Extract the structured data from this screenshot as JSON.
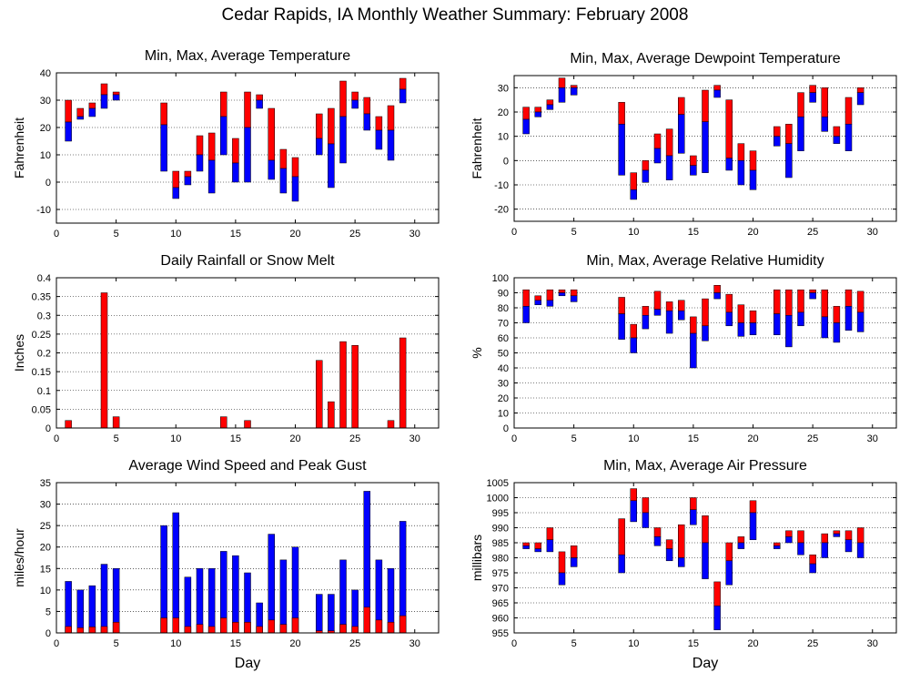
{
  "page_title": "Cedar Rapids, IA Monthly Weather Summary: February 2008",
  "colors": {
    "max": "#ff0000",
    "min": "#0000ff",
    "grid": "#000000"
  },
  "chart_data": [
    {
      "id": "temperature",
      "type": "bar",
      "title": "Min, Max, Average Temperature",
      "xlabel": "",
      "ylabel": "Fahrenheit",
      "xlim": [
        0,
        32
      ],
      "ylim": [
        -15,
        40
      ],
      "x_ticks": [
        0,
        5,
        10,
        15,
        20,
        25,
        30
      ],
      "y_ticks": [
        -10,
        0,
        10,
        20,
        30,
        40
      ],
      "grid": "horizontal dotted",
      "days": [
        1,
        2,
        3,
        4,
        5,
        9,
        10,
        11,
        12,
        13,
        14,
        15,
        16,
        17,
        18,
        19,
        20,
        22,
        23,
        24,
        25,
        26,
        27,
        28,
        29
      ],
      "max": [
        30,
        27,
        29,
        36,
        33,
        29,
        4,
        4,
        17,
        18,
        33,
        16,
        33,
        32,
        27,
        12,
        9,
        25,
        27,
        37,
        33,
        31,
        24,
        28,
        38
      ],
      "avg": [
        22,
        24,
        27,
        32,
        32,
        21,
        -2,
        2,
        10,
        8,
        24,
        7,
        20,
        30,
        8,
        5,
        2,
        16,
        14,
        24,
        30,
        25,
        19,
        19,
        34
      ],
      "min": [
        15,
        23,
        24,
        27,
        30,
        4,
        -6,
        -1,
        4,
        -4,
        10,
        0,
        0,
        27,
        1,
        -4,
        -7,
        10,
        -2,
        7,
        27,
        19,
        12,
        8,
        29
      ]
    },
    {
      "id": "dewpoint",
      "type": "bar",
      "title": "Min, Max, Average Dewpoint Temperature",
      "xlabel": "",
      "ylabel": "Fahrenheit",
      "xlim": [
        0,
        32
      ],
      "ylim": [
        -25,
        35
      ],
      "x_ticks": [
        0,
        5,
        10,
        15,
        20,
        25,
        30
      ],
      "y_ticks": [
        -20,
        -10,
        0,
        10,
        20,
        30
      ],
      "grid": "horizontal dotted",
      "days": [
        1,
        2,
        3,
        4,
        5,
        9,
        10,
        11,
        12,
        13,
        14,
        15,
        16,
        17,
        18,
        19,
        20,
        22,
        23,
        24,
        25,
        26,
        27,
        28,
        29
      ],
      "max": [
        22,
        22,
        25,
        34,
        31,
        24,
        -5,
        0,
        11,
        13,
        26,
        2,
        29,
        31,
        25,
        7,
        4,
        14,
        15,
        28,
        31,
        30,
        14,
        26,
        30
      ],
      "avg": [
        17,
        20,
        23,
        30,
        30,
        15,
        -12,
        -4,
        5,
        2,
        19,
        -2,
        16,
        29,
        1,
        0,
        -4,
        10,
        7,
        18,
        28,
        18,
        10,
        15,
        28
      ],
      "min": [
        11,
        18,
        21,
        24,
        27,
        -6,
        -16,
        -9,
        -1,
        -8,
        3,
        -6,
        -5,
        26,
        -4,
        -10,
        -12,
        6,
        -7,
        4,
        24,
        12,
        7,
        4,
        23
      ]
    },
    {
      "id": "rainfall",
      "type": "bar",
      "title": "Daily Rainfall or Snow Melt",
      "xlabel": "",
      "ylabel": "Inches",
      "xlim": [
        0,
        32
      ],
      "ylim": [
        0,
        0.4
      ],
      "x_ticks": [
        0,
        5,
        10,
        15,
        20,
        25,
        30
      ],
      "y_ticks": [
        0,
        0.05,
        0.1,
        0.15,
        0.2,
        0.25,
        0.3,
        0.35,
        0.4
      ],
      "y_tick_labels": [
        "0",
        "0.05",
        "0.1",
        "0.15",
        "0.2",
        "0.25",
        "0.3",
        "0.35",
        "0.4"
      ],
      "grid": "horizontal dotted",
      "days": [
        1,
        4,
        5,
        14,
        16,
        22,
        23,
        24,
        25,
        28,
        29
      ],
      "values": [
        0.02,
        0.36,
        0.03,
        0.03,
        0.02,
        0.18,
        0.07,
        0.23,
        0.22,
        0.02,
        0.24
      ]
    },
    {
      "id": "humidity",
      "type": "bar",
      "title": "Min, Max, Average Relative Humidity",
      "xlabel": "",
      "ylabel": "%",
      "xlim": [
        0,
        32
      ],
      "ylim": [
        0,
        100
      ],
      "x_ticks": [
        0,
        5,
        10,
        15,
        20,
        25,
        30
      ],
      "y_ticks": [
        0,
        10,
        20,
        30,
        40,
        50,
        60,
        70,
        80,
        90,
        100
      ],
      "grid": "horizontal dotted",
      "days": [
        1,
        2,
        3,
        4,
        5,
        9,
        10,
        11,
        12,
        13,
        14,
        15,
        16,
        17,
        18,
        19,
        20,
        22,
        23,
        24,
        25,
        26,
        27,
        28,
        29
      ],
      "max": [
        92,
        88,
        92,
        92,
        92,
        87,
        69,
        81,
        91,
        84,
        85,
        74,
        86,
        95,
        89,
        82,
        78,
        92,
        92,
        92,
        92,
        92,
        81,
        92,
        91
      ],
      "avg": [
        81,
        85,
        85,
        90,
        88,
        76,
        60,
        75,
        79,
        78,
        78,
        63,
        68,
        90,
        77,
        70,
        70,
        76,
        75,
        77,
        90,
        74,
        70,
        81,
        77
      ],
      "min": [
        70,
        82,
        81,
        88,
        84,
        59,
        50,
        66,
        75,
        63,
        72,
        40,
        58,
        86,
        68,
        61,
        62,
        62,
        54,
        68,
        86,
        60,
        57,
        65,
        64
      ]
    },
    {
      "id": "wind",
      "type": "bar",
      "title": "Average Wind Speed and Peak Gust",
      "xlabel": "Day",
      "ylabel": "miles/hour",
      "xlim": [
        0,
        32
      ],
      "ylim": [
        0,
        35
      ],
      "x_ticks": [
        0,
        5,
        10,
        15,
        20,
        25,
        30
      ],
      "y_ticks": [
        0,
        5,
        10,
        15,
        20,
        25,
        30,
        35
      ],
      "grid": "horizontal dotted",
      "days": [
        1,
        2,
        3,
        4,
        5,
        9,
        10,
        11,
        12,
        13,
        14,
        15,
        16,
        17,
        18,
        19,
        20,
        22,
        23,
        24,
        25,
        26,
        27,
        28,
        29
      ],
      "peak_gust": [
        12,
        10,
        11,
        16,
        15,
        25,
        28,
        13,
        15,
        15,
        19,
        18,
        14,
        7,
        23,
        17,
        20,
        9,
        9,
        17,
        10,
        33,
        17,
        15,
        26
      ],
      "avg_speed": [
        1.5,
        1.2,
        1.4,
        1.5,
        2.5,
        3.5,
        3.5,
        1.5,
        2,
        1.5,
        3.5,
        2.5,
        2.5,
        1.5,
        3,
        2,
        3.5,
        0.5,
        0.5,
        2,
        1.5,
        6,
        3,
        2.5,
        4
      ]
    },
    {
      "id": "pressure",
      "type": "bar",
      "title": "Min, Max, Average Air Pressure",
      "xlabel": "Day",
      "ylabel": "millibars",
      "xlim": [
        0,
        32
      ],
      "ylim": [
        955,
        1005
      ],
      "x_ticks": [
        0,
        5,
        10,
        15,
        20,
        25,
        30
      ],
      "y_ticks": [
        955,
        960,
        965,
        970,
        975,
        980,
        985,
        990,
        995,
        1000,
        1005
      ],
      "grid": "horizontal dotted",
      "days": [
        1,
        2,
        3,
        4,
        5,
        9,
        10,
        11,
        12,
        13,
        14,
        15,
        16,
        17,
        18,
        19,
        20,
        22,
        23,
        24,
        25,
        26,
        27,
        28,
        29
      ],
      "max": [
        985,
        985,
        990,
        982,
        984,
        993,
        1003,
        1000,
        990,
        986,
        991,
        1000,
        994,
        972,
        985,
        987,
        999,
        985,
        989,
        989,
        981,
        988,
        989,
        989,
        990
      ],
      "avg": [
        984,
        983,
        986,
        975,
        980,
        981,
        999,
        995,
        987,
        983,
        980,
        996,
        985,
        964,
        979,
        985,
        995,
        984,
        987,
        985,
        978,
        985,
        988,
        986,
        985
      ],
      "min": [
        983,
        982,
        982,
        971,
        977,
        975,
        992,
        990,
        984,
        979,
        977,
        991,
        973,
        956,
        971,
        983,
        986,
        983,
        985,
        981,
        975,
        980,
        987,
        982,
        980
      ]
    }
  ]
}
